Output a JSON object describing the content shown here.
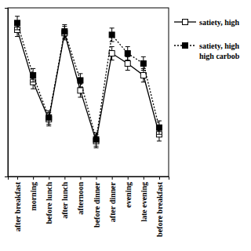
{
  "chart_data": {
    "type": "line",
    "categories": [
      "after breakfast",
      "morning",
      "before lunch",
      "after lunch",
      "afternoon",
      "before dinner",
      "after dinner",
      "evening",
      "late evening",
      "before breakfast"
    ],
    "series": [
      {
        "name": "satiety, high",
        "color": "#000000",
        "marker": "square-open",
        "line_style": "solid",
        "values": [
          87,
          56,
          34,
          85,
          51,
          21,
          73,
          67,
          60,
          25
        ],
        "errors": [
          4,
          4,
          4,
          4,
          4,
          4,
          4,
          4,
          4,
          4
        ]
      },
      {
        "name": "satiety, high\nhigh carbob",
        "color": "#000000",
        "marker": "square",
        "line_style": "dotted",
        "values": [
          91,
          60,
          35,
          86,
          57,
          22,
          84,
          73,
          67,
          29
        ],
        "errors": [
          4,
          4,
          4,
          4,
          4,
          4,
          4,
          4,
          4,
          4
        ]
      }
    ],
    "ylim": [
      0,
      100
    ],
    "yticks": [],
    "tick_labels": "x",
    "legend": "upper right"
  }
}
